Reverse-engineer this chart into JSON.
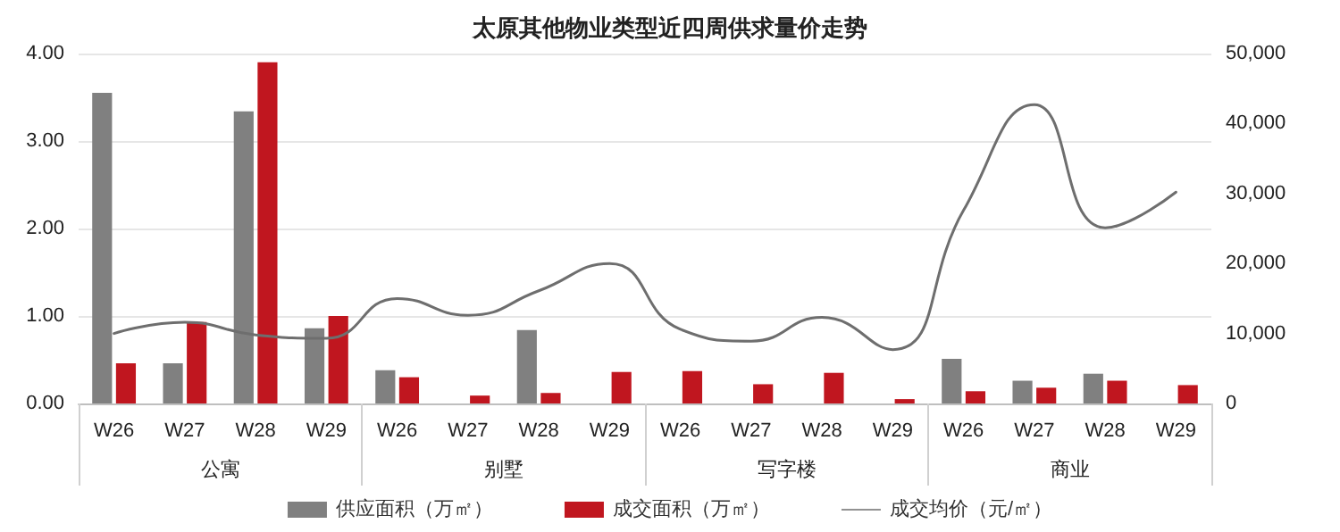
{
  "chart_data": {
    "type": "bar",
    "title": "太原其他物业类型近四周供求量价走势",
    "categories": [
      "W26",
      "W27",
      "W28",
      "W29",
      "W26",
      "W27",
      "W28",
      "W29",
      "W26",
      "W27",
      "W28",
      "W29",
      "W26",
      "W27",
      "W28",
      "W29"
    ],
    "annotations": [
      "公寓",
      "别墅",
      "写字楼",
      "商业"
    ],
    "series": [
      {
        "name": "供应面积（万㎡）",
        "color": "#808080",
        "values": [
          3.55,
          0.46,
          3.34,
          0.86,
          0.38,
          0,
          0.84,
          0,
          0,
          0,
          0,
          0,
          0.51,
          0.26,
          0.34,
          0
        ]
      },
      {
        "name": "成交面积（万㎡）",
        "color": "#c0161f",
        "values": [
          0.46,
          0.93,
          3.9,
          1.0,
          0.3,
          0.09,
          0.12,
          0.36,
          0.37,
          0.22,
          0.35,
          0.05,
          0.14,
          0.18,
          0.26,
          0.21
        ]
      },
      {
        "name": "成交均价（元/㎡）",
        "type": "line",
        "axis": "y2",
        "color": "#6e6e6e",
        "marker": "none",
        "values": [
          10000,
          11600,
          9800,
          9300,
          15000,
          12600,
          16100,
          20000,
          10600,
          8900,
          12300,
          7700,
          27600,
          42700,
          25100,
          30200
        ]
      }
    ],
    "ylim": [
      0,
      4
    ],
    "yticks": [
      {
        "value": 0,
        "label": "0.00"
      },
      {
        "value": 1,
        "label": "1.00"
      },
      {
        "value": 2,
        "label": "2.00"
      },
      {
        "value": 3,
        "label": "3.00"
      },
      {
        "value": 4,
        "label": "4.00"
      }
    ],
    "y2lim": [
      0,
      50000
    ],
    "y2ticks": [
      0,
      {
        "value": 10000,
        "label": "10,000"
      },
      {
        "value": 20000,
        "label": "20,000"
      },
      {
        "value": 30000,
        "label": "30,000"
      },
      {
        "value": 40000,
        "label": "40,000"
      },
      {
        "value": 50000,
        "label": "50,000"
      }
    ],
    "grid": "y",
    "legend": "bottom"
  }
}
